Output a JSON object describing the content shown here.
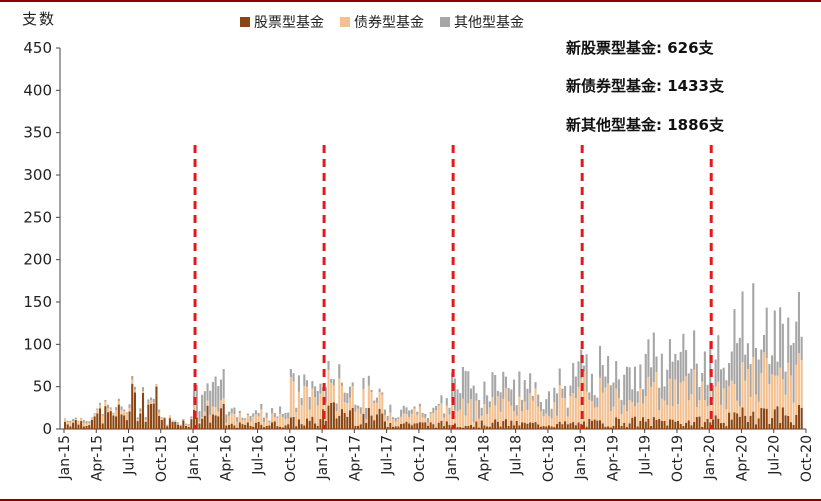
{
  "chart_data": {
    "type": "bar",
    "stacked": true,
    "ylabel": "支数",
    "ylim": [
      0,
      450
    ],
    "yticks": [
      0,
      50,
      100,
      150,
      200,
      250,
      300,
      350,
      400,
      450
    ],
    "xtick_labels": [
      "Jan-15",
      "Apr-15",
      "Jul-15",
      "Oct-15",
      "Jan-16",
      "Apr-16",
      "Jul-16",
      "Oct-16",
      "Jan-17",
      "Apr-17",
      "Jul-17",
      "Oct-17",
      "Jan-18",
      "Apr-18",
      "Jul-18",
      "Oct-18",
      "Jan-19",
      "Apr-19",
      "Jul-19",
      "Oct-19",
      "Jan-20",
      "Apr-20",
      "Jul-20",
      "Oct-20"
    ],
    "legend_position": "top",
    "series": [
      {
        "name": "股票型基金",
        "color": "#8b4513",
        "monthly_peak": [
          15,
          30,
          55,
          15,
          30,
          8,
          10,
          15,
          35,
          25,
          12,
          10,
          10,
          12,
          10,
          10,
          12,
          15,
          15,
          15,
          20,
          35,
          30,
          25
        ]
      },
      {
        "name": "债券型基金",
        "color": "#f4c08f",
        "monthly_peak": [
          5,
          10,
          5,
          3,
          10,
          15,
          20,
          50,
          45,
          30,
          20,
          25,
          35,
          40,
          40,
          45,
          60,
          55,
          60,
          65,
          60,
          70,
          70,
          65
        ]
      },
      {
        "name": "其他型基金",
        "color": "#a6a6a6",
        "monthly_peak": [
          3,
          5,
          5,
          2,
          40,
          10,
          10,
          20,
          20,
          15,
          10,
          10,
          55,
          40,
          30,
          40,
          45,
          55,
          60,
          60,
          90,
          90,
          80,
          85
        ]
      }
    ],
    "reference_lines_at_tick": [
      "Jan-16",
      "Jan-17",
      "Jan-18",
      "Jan-19",
      "Jan-20"
    ],
    "reference_line_color": "#e31a1c",
    "annotations": [
      {
        "label": "新股票型基金",
        "value": "626支"
      },
      {
        "label": "新债券型基金",
        "value": "1433支"
      },
      {
        "label": "新其他型基金",
        "value": "1886支"
      }
    ]
  }
}
